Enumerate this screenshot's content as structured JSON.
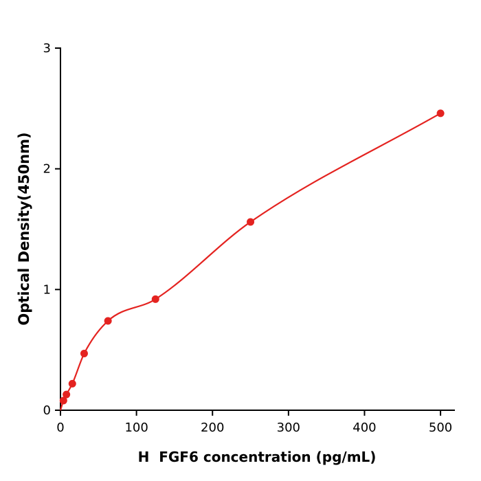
{
  "figure": {
    "background_color": "#ffffff",
    "axis_color": "#000000"
  },
  "chart_data": {
    "type": "scatter",
    "title": "",
    "xlabel": "H  FGF6 concentration (pg/mL)",
    "ylabel": "Optical Density(450nm)",
    "x": [
      3.9,
      7.8,
      15.6,
      31.2,
      62.5,
      125,
      250,
      500
    ],
    "y": [
      0.08,
      0.13,
      0.22,
      0.47,
      0.74,
      0.92,
      1.56,
      2.46
    ],
    "curve_fit": "smooth saturating curve through origin",
    "xlim": [
      0,
      518
    ],
    "ylim": [
      0,
      3
    ],
    "x_ticks": [
      0,
      100,
      200,
      300,
      400,
      500
    ],
    "y_ticks": [
      0,
      1,
      2,
      3
    ],
    "grid": false,
    "legend": "none",
    "point_color": "#e42320",
    "line_color": "#e42320",
    "marker": "circle",
    "marker_radius": 5.5
  }
}
